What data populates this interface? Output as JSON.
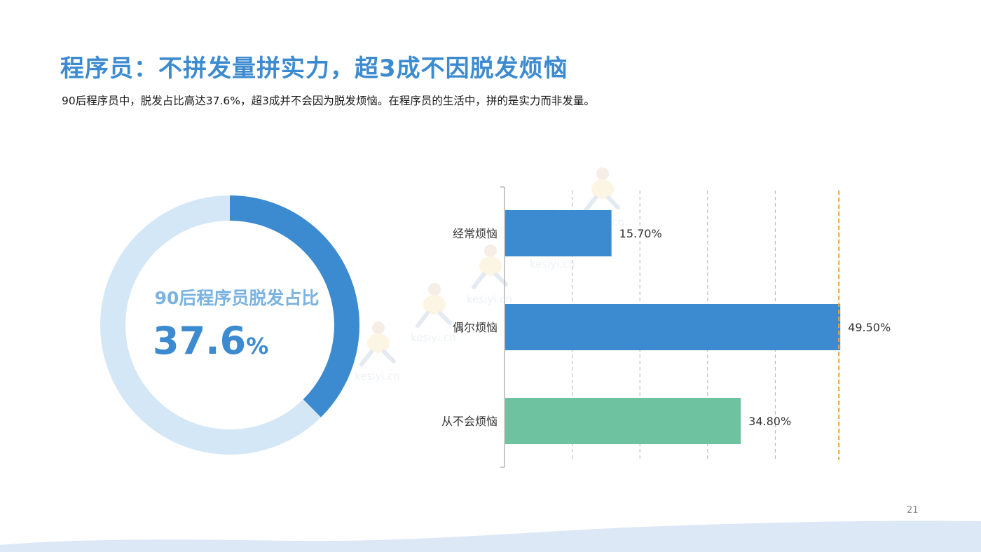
{
  "header": {
    "title": "程序员：不拼发量拼实力，超3成不因脱发烦恼",
    "subtitle": "90后程序员中，脱发占比高达37.6%，超3成并不会因为脱发烦恼。在程序员的生活中，拼的是实力而非发量。"
  },
  "page_number": "21",
  "watermark": {
    "text": "kesiyi.cn"
  },
  "colors": {
    "title": "#3c8ad0",
    "donut_fill": "#3c8ad0",
    "donut_track": "#d4e7f6",
    "donut_label": "#7ab2e0",
    "bar_blue": "#3c8ad0",
    "bar_green": "#6ec29f",
    "max_line": "#f0a23a",
    "grid": "#b5b5b5",
    "wave": "#dce8f5"
  },
  "chart_data": [
    {
      "type": "pie",
      "variant": "donut",
      "title": "90后程序员脱发占比",
      "value_label": "37.6",
      "unit": "%",
      "value": 37.6,
      "max": 100
    },
    {
      "type": "bar",
      "orientation": "horizontal",
      "categories": [
        "经常烦恼",
        "偶尔烦恼",
        "从不会烦恼"
      ],
      "values": [
        15.7,
        49.5,
        34.8
      ],
      "value_labels": [
        "15.70%",
        "49.50%",
        "34.80%"
      ],
      "bar_colors": [
        "#3c8ad0",
        "#3c8ad0",
        "#6ec29f"
      ],
      "xlim": [
        0,
        50
      ],
      "grid": "vertical dashed",
      "max_marker": "orange dashed line at maximum value"
    }
  ]
}
